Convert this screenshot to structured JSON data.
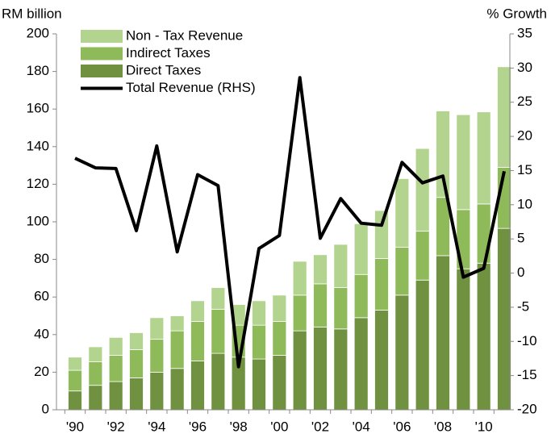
{
  "chart_data": {
    "type": "bar",
    "stacked": true,
    "y_label": "RM billion",
    "y2_label": "% Growth",
    "categories": [
      "'90",
      null,
      "'92",
      null,
      "'94",
      null,
      "'96",
      null,
      "'98",
      null,
      "'00",
      null,
      "'02",
      null,
      "'04",
      null,
      "'06",
      null,
      "'08",
      null,
      "'10",
      null
    ],
    "series": [
      {
        "name": "Direct Taxes",
        "color": "#6f9140",
        "values": [
          10,
          13,
          15,
          17,
          20,
          22,
          26,
          30,
          28,
          27,
          29,
          42,
          44,
          43,
          49,
          53,
          61,
          69,
          82,
          75,
          78,
          96.5
        ]
      },
      {
        "name": "Indirect Taxes",
        "color": "#8fba5a",
        "values": [
          11,
          12.5,
          14,
          15,
          17.5,
          20,
          21,
          23.5,
          17,
          18,
          18,
          19,
          23,
          22,
          23,
          27.5,
          25.5,
          26,
          31,
          31.5,
          31.5,
          32.5
        ]
      },
      {
        "name": "Non - Tax Revenue",
        "color": "#b3d48e",
        "values": [
          7,
          8,
          9.5,
          9,
          11.5,
          8,
          11,
          11.5,
          11,
          13,
          14,
          18,
          15.5,
          23,
          27,
          25.5,
          36.5,
          44,
          46,
          50.5,
          49,
          53.5
        ]
      },
      {
        "name": "Total Revenue (RHS)",
        "type": "line",
        "axis": "y2",
        "color": "#000000",
        "values": [
          16.8,
          15.4,
          15.3,
          6.2,
          18.6,
          3.1,
          14.4,
          12.8,
          -13.7,
          3.6,
          5.5,
          28.6,
          5.1,
          10.9,
          7.3,
          7.0,
          16.2,
          13.2,
          14.2,
          -0.6,
          0.7,
          14.9
        ]
      }
    ],
    "ylim": [
      0,
      200
    ],
    "yticks": [
      0,
      20,
      40,
      60,
      80,
      100,
      120,
      140,
      160,
      180,
      200
    ],
    "y2lim": [
      -20,
      35
    ],
    "y2ticks": [
      -20,
      -15,
      -10,
      -5,
      0,
      5,
      10,
      15,
      20,
      25,
      30,
      35
    ],
    "legend": "upper left",
    "grid": false
  }
}
